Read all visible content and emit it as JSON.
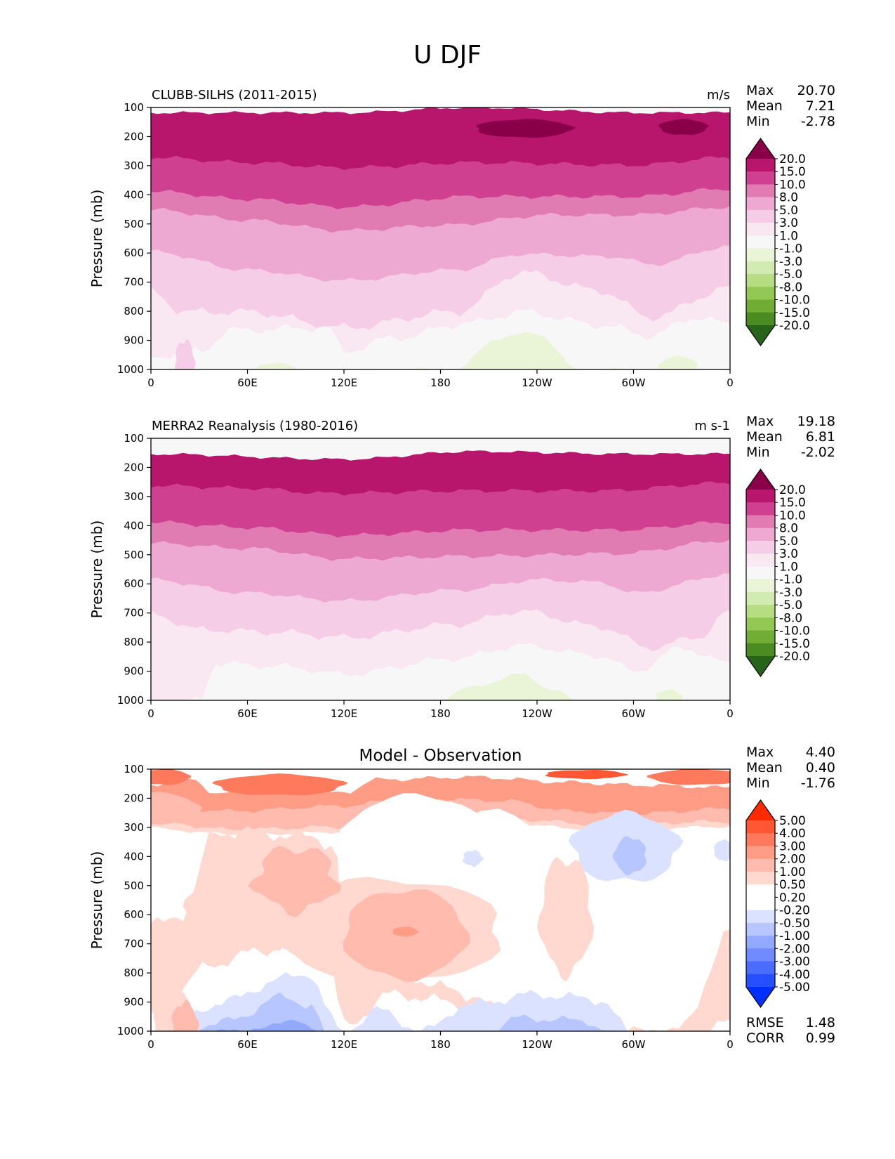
{
  "title": "U DJF",
  "x_ticks": [
    "0",
    "60E",
    "120E",
    "180",
    "120W",
    "60W",
    "0"
  ],
  "y_ticks": [
    "100",
    "200",
    "300",
    "400",
    "500",
    "600",
    "700",
    "800",
    "900",
    "1000"
  ],
  "chart_data": [
    {
      "type": "heatmap",
      "subplot_title": "CLUBB-SILHS (2011-2015)",
      "units": "m/s",
      "xlabel": "",
      "ylabel": "Pressure (mb)",
      "xlim": [
        0,
        360
      ],
      "ylim": [
        1000,
        100
      ],
      "stats": [
        {
          "label": "Max",
          "value": "20.70"
        },
        {
          "label": "Mean",
          "value": "7.21"
        },
        {
          "label": "Min",
          "value": "-2.78"
        }
      ],
      "colorbar_levels": [
        "20.0",
        "15.0",
        "10.0",
        "8.0",
        "5.0",
        "3.0",
        "1.0",
        "-1.0",
        "-3.0",
        "-5.0",
        "-8.0",
        "-10.0",
        "-15.0",
        "-20.0"
      ]
    },
    {
      "type": "heatmap",
      "subplot_title": "MERRA2 Reanalysis (1980-2016)",
      "units": "m s-1",
      "xlabel": "",
      "ylabel": "Pressure (mb)",
      "xlim": [
        0,
        360
      ],
      "ylim": [
        1000,
        100
      ],
      "stats": [
        {
          "label": "Max",
          "value": "19.18"
        },
        {
          "label": "Mean",
          "value": "6.81"
        },
        {
          "label": "Min",
          "value": "-2.02"
        }
      ],
      "colorbar_levels": [
        "20.0",
        "15.0",
        "10.0",
        "8.0",
        "5.0",
        "3.0",
        "1.0",
        "-1.0",
        "-3.0",
        "-5.0",
        "-8.0",
        "-10.0",
        "-15.0",
        "-20.0"
      ]
    },
    {
      "type": "heatmap",
      "subplot_title": "Model - Observation",
      "units": "",
      "xlabel": "",
      "ylabel": "Pressure (mb)",
      "xlim": [
        0,
        360
      ],
      "ylim": [
        1000,
        100
      ],
      "stats": [
        {
          "label": "Max",
          "value": "4.40"
        },
        {
          "label": "Mean",
          "value": "0.40"
        },
        {
          "label": "Min",
          "value": "-1.76"
        }
      ],
      "extra_stats": [
        {
          "label": "RMSE",
          "value": "1.48"
        },
        {
          "label": "CORR",
          "value": "0.99"
        }
      ],
      "colorbar_levels": [
        "5.00",
        "4.00",
        "3.00",
        "2.00",
        "1.00",
        "0.50",
        "0.20",
        "-0.20",
        "-0.50",
        "-1.00",
        "-2.00",
        "-3.00",
        "-4.00",
        "-5.00"
      ]
    }
  ],
  "colors": {
    "pos_scale": [
      "#8a0048",
      "#b8156c",
      "#cf4090",
      "#e07cb2",
      "#eea9d2",
      "#f6cde6",
      "#f9e7f1",
      "#f7f7f7",
      "#e9f5d6",
      "#d2ebb0",
      "#b6dd82",
      "#94c855",
      "#71ad35",
      "#4b8c22",
      "#276419"
    ],
    "diff_scale": [
      "#ff2a00",
      "#ff5633",
      "#ff7a5c",
      "#ff9c86",
      "#ffbcae",
      "#ffd8cf",
      "#ffffff",
      "#ffffff",
      "#dae2ff",
      "#b7c6ff",
      "#93a9ff",
      "#6f8bff",
      "#4a6cff",
      "#2650ff",
      "#0030ff"
    ]
  }
}
